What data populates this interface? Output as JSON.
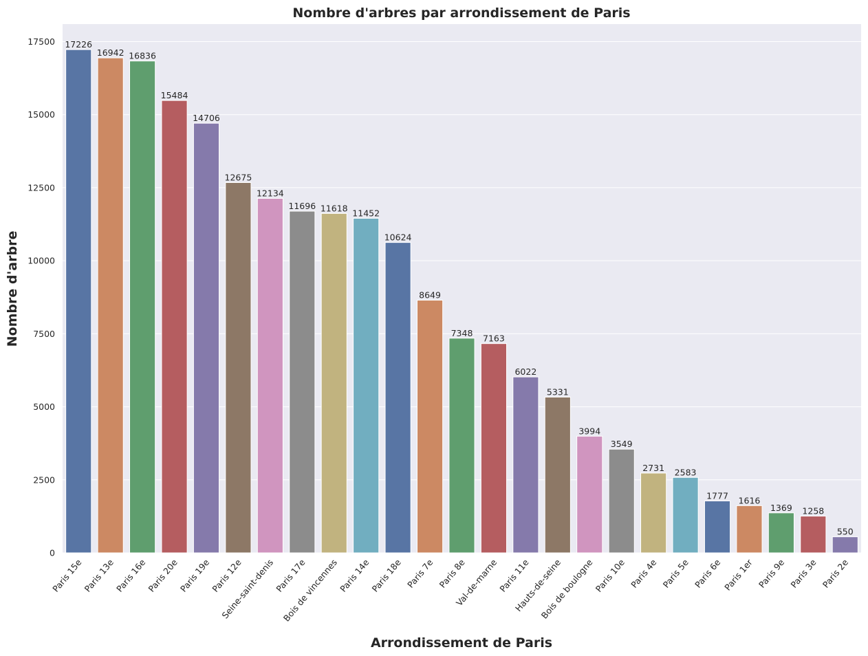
{
  "chart_data": {
    "type": "bar",
    "title": "Nombre d'arbres par arrondissement de Paris",
    "xlabel": "Arrondissement de Paris",
    "ylabel": "Nombre d'arbre",
    "ylim": [
      0,
      18100
    ],
    "yticks": [
      0,
      2500,
      5000,
      7500,
      10000,
      12500,
      15000,
      17500
    ],
    "ytick_labels": [
      "0",
      "2500",
      "5000",
      "7500",
      "10000",
      "12500",
      "15000",
      "17500"
    ],
    "grid": true,
    "categories": [
      "Paris 15e",
      "Paris 13e",
      "Paris 16e",
      "Paris 20e",
      "Paris 19e",
      "Paris 12e",
      "Seine-saint-denis",
      "Paris 17e",
      "Bois de vincennes",
      "Paris 14e",
      "Paris 18e",
      "Paris 7e",
      "Paris 8e",
      "Val-de-marne",
      "Paris 11e",
      "Hauts-de-seine",
      "Bois de boulogne",
      "Paris 10e",
      "Paris 4e",
      "Paris 5e",
      "Paris 6e",
      "Paris 1er",
      "Paris 9e",
      "Paris 3e",
      "Paris 2e"
    ],
    "values": [
      17226,
      16942,
      16836,
      15484,
      14706,
      12675,
      12134,
      11696,
      11618,
      11452,
      10624,
      8649,
      7348,
      7163,
      6022,
      5331,
      3994,
      3549,
      2731,
      2583,
      1777,
      1616,
      1369,
      1258,
      550
    ],
    "value_labels": [
      "17226",
      "16942",
      "16836",
      "15484",
      "14706",
      "12675",
      "12134",
      "11696",
      "11618",
      "11452",
      "10624",
      "8649",
      "7348",
      "7163",
      "6022",
      "5331",
      "3994",
      "3549",
      "2731",
      "2583",
      "1777",
      "1616",
      "1369",
      "1258",
      "550"
    ],
    "palette": [
      "#5875a4",
      "#cc8963",
      "#5f9e6e",
      "#b55d60",
      "#857aab",
      "#8d7866",
      "#d095bf",
      "#8c8c8c",
      "#c1b37f",
      "#71aec0"
    ],
    "background": "#eaeaf2",
    "grid_color": "#ffffff"
  }
}
